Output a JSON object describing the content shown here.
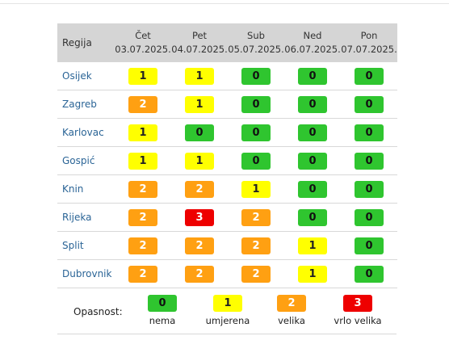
{
  "table": {
    "region_header": "Regija",
    "days": [
      {
        "name": "Čet",
        "date": "03.07.2025."
      },
      {
        "name": "Pet",
        "date": "04.07.2025."
      },
      {
        "name": "Sub",
        "date": "05.07.2025."
      },
      {
        "name": "Ned",
        "date": "06.07.2025."
      },
      {
        "name": "Pon",
        "date": "07.07.2025."
      }
    ],
    "rows": [
      {
        "region": "Osijek",
        "levels": [
          "1",
          "1",
          "0",
          "0",
          "0"
        ]
      },
      {
        "region": "Zagreb",
        "levels": [
          "2",
          "1",
          "0",
          "0",
          "0"
        ]
      },
      {
        "region": "Karlovac",
        "levels": [
          "1",
          "0",
          "0",
          "0",
          "0"
        ]
      },
      {
        "region": "Gospić",
        "levels": [
          "1",
          "1",
          "0",
          "0",
          "0"
        ]
      },
      {
        "region": "Knin",
        "levels": [
          "2",
          "2",
          "1",
          "0",
          "0"
        ]
      },
      {
        "region": "Rijeka",
        "levels": [
          "2",
          "3",
          "2",
          "0",
          "0"
        ]
      },
      {
        "region": "Split",
        "levels": [
          "2",
          "2",
          "2",
          "1",
          "0"
        ]
      },
      {
        "region": "Dubrovnik",
        "levels": [
          "2",
          "2",
          "2",
          "1",
          "0"
        ]
      }
    ]
  },
  "legend": {
    "label": "Opasnost:",
    "items": [
      {
        "level": "0",
        "text": "nema"
      },
      {
        "level": "1",
        "text": "umjerena"
      },
      {
        "level": "2",
        "text": "velika"
      },
      {
        "level": "3",
        "text": "vrlo velika"
      }
    ]
  },
  "colors": {
    "level_0": "#2fc52f",
    "level_1": "#ffff00",
    "level_2": "#ffa012",
    "level_3": "#ee0000",
    "header_bg": "#d5d5d5",
    "region_link": "#2a6496"
  }
}
